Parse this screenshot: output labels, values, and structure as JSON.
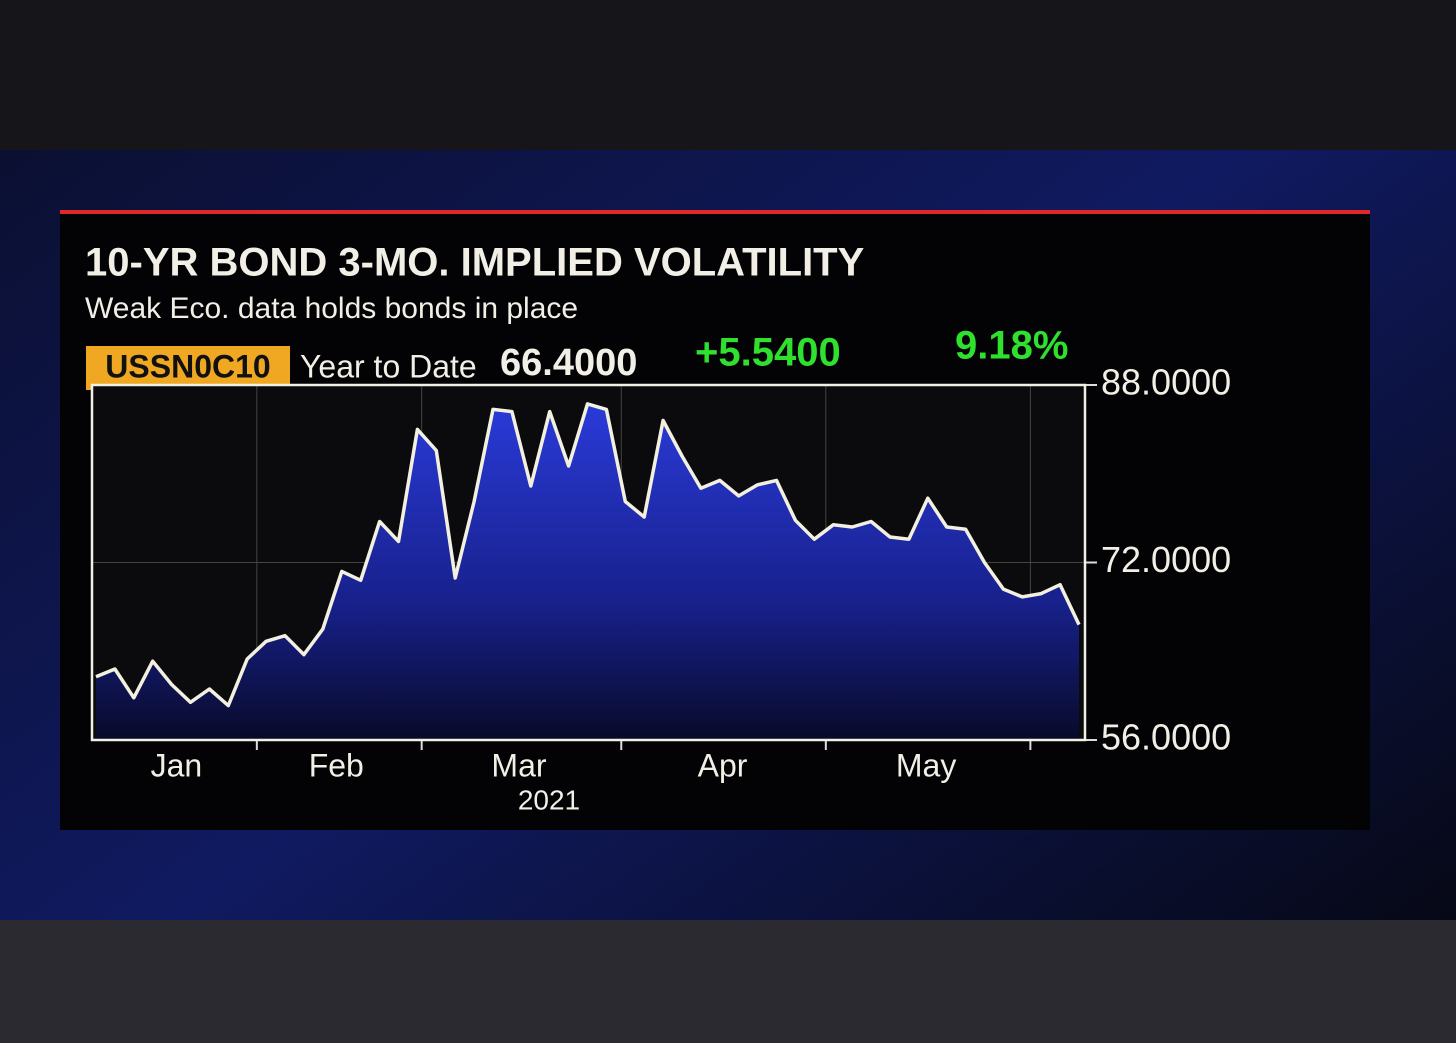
{
  "chart_data": {
    "type": "area",
    "title": "10-YR BOND 3-MO. IMPLIED VOLATILITY",
    "subtitle": "Weak Eco. data holds bonds in place",
    "ticker": "USSN0C10",
    "period": "Year to Date",
    "last": "66.4000",
    "change": "+5.5400",
    "change_pct": "9.18%",
    "months": [
      "Jan",
      "Feb",
      "Mar",
      "Apr",
      "May"
    ],
    "year": "2021",
    "values": [
      61.7,
      62.4,
      59.8,
      63.1,
      61,
      59.4,
      60.6,
      59.1,
      63.3,
      64.9,
      65.4,
      63.7,
      66,
      71.2,
      70.4,
      75.7,
      73.9,
      84,
      82.1,
      70.6,
      77.5,
      85.8,
      85.6,
      78.9,
      85.6,
      80.7,
      86.3,
      85.8,
      77.5,
      76.1,
      84.8,
      81.6,
      78.7,
      79.4,
      78,
      79,
      79.4,
      75.8,
      74.1,
      75.4,
      75.2,
      75.7,
      74.3,
      74.1,
      77.8,
      75.2,
      75,
      72,
      69.6,
      68.9,
      69.2,
      70,
      66.4
    ],
    "color": "#f4f0e0",
    "ylim": [
      56,
      88
    ],
    "yticks": [
      {
        "value": 56,
        "label": "56.0000"
      },
      {
        "value": 72,
        "label": "72.0000"
      },
      {
        "value": 88,
        "label": "88.0000"
      }
    ],
    "grid": true
  }
}
